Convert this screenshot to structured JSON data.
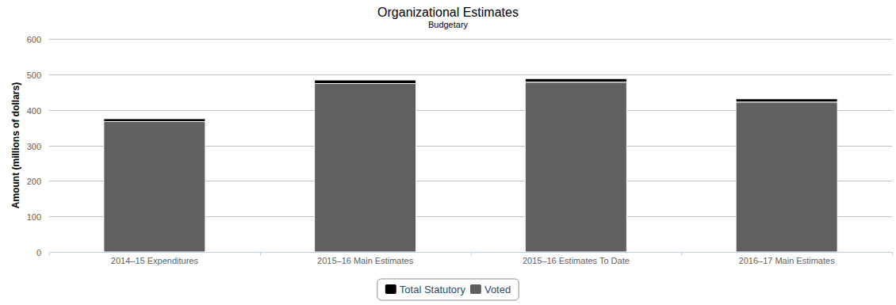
{
  "chart_data": {
    "type": "bar",
    "title": "Organizational Estimates",
    "subtitle": "Budgetary",
    "y_label": "Amount (millions of dollars)",
    "categories": [
      "2014–15 Expenditures",
      "2015–16 Main Estimates",
      "2015–16 Estimates To Date",
      "2016–17 Main Estimates"
    ],
    "series": [
      {
        "name": "Total Statutory",
        "color": "#000000",
        "values": [
          8,
          10,
          10,
          9
        ]
      },
      {
        "name": "Voted",
        "color": "#606060",
        "values": [
          367,
          474,
          478,
          422
        ]
      }
    ],
    "stacked": true,
    "ylim": [
      0,
      600
    ],
    "yticks": [
      0,
      100,
      200,
      300,
      400,
      500,
      600
    ],
    "grid": true,
    "legend": "bottom"
  }
}
